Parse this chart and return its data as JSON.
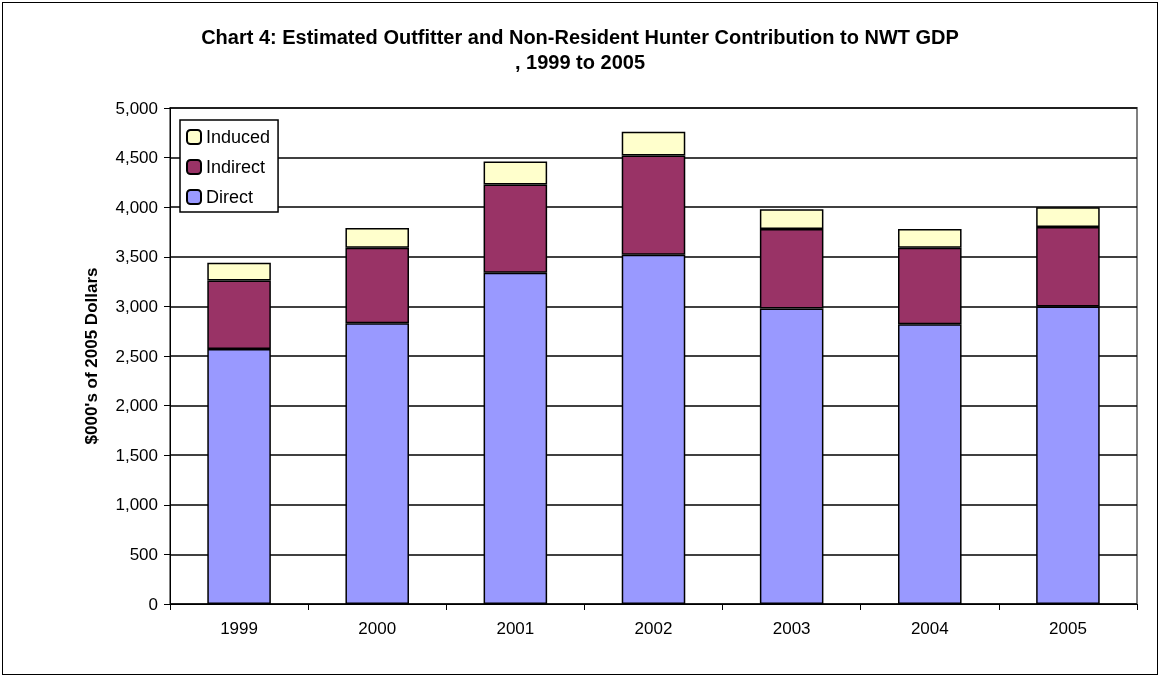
{
  "chart_data": {
    "type": "bar",
    "title": "Chart 4: Estimated Outfitter and Non-Resident Hunter Contribution to NWT GDP, 1999 to 2005",
    "ylabel": "$000's of 2005 Dollars",
    "categories": [
      "1999",
      "2000",
      "2001",
      "2002",
      "2003",
      "2004",
      "2005"
    ],
    "stacked": true,
    "series": [
      {
        "name": "Direct",
        "color": "#9999ff",
        "values": [
          2570,
          2830,
          3340,
          3520,
          2980,
          2820,
          3000
        ]
      },
      {
        "name": "Indirect",
        "color": "#993366",
        "values": [
          690,
          760,
          890,
          1000,
          800,
          770,
          800
        ]
      },
      {
        "name": "Induced",
        "color": "#ffffcc",
        "values": [
          180,
          200,
          230,
          240,
          200,
          190,
          200
        ]
      }
    ],
    "ylim": [
      0,
      5000
    ],
    "yticks": [
      0,
      500,
      {
        "value": 1000,
        "label": "1,000"
      },
      {
        "value": 1500,
        "label": "1,500"
      },
      {
        "value": 2000,
        "label": "2,000"
      },
      {
        "value": 2500,
        "label": "2,500"
      },
      {
        "value": 3000,
        "label": "3,000"
      },
      {
        "value": 3500,
        "label": "3,500"
      },
      {
        "value": 4000,
        "label": "4,000"
      },
      {
        "value": 4500,
        "label": "4,500"
      },
      {
        "value": 5000,
        "label": "5,000"
      }
    ],
    "grid": "y",
    "legend": "top left"
  }
}
